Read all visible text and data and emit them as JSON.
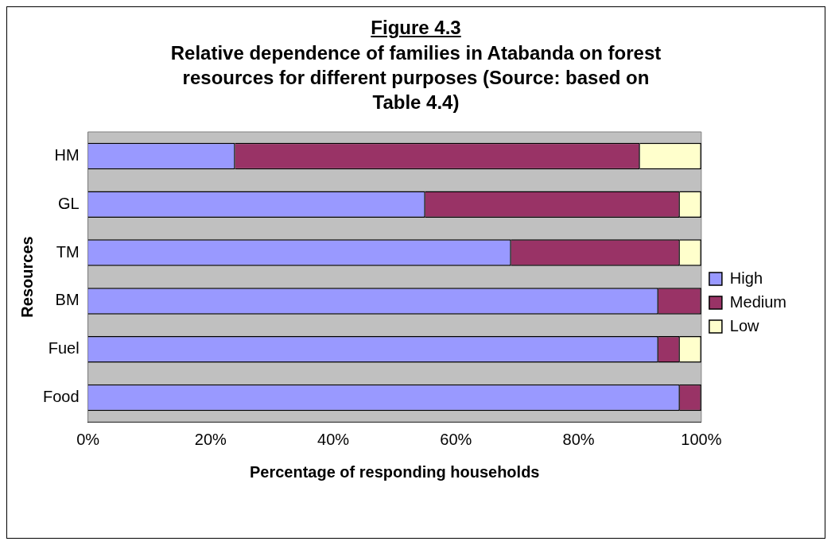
{
  "chart_data": {
    "type": "bar",
    "orientation": "horizontal",
    "stacked": true,
    "title": "Figure 4.3",
    "subtitle": "Relative dependence of families in Atabanda on forest resources for different purposes (Source: based on Table 4.4)",
    "xlabel": "Percentage of responding households",
    "ylabel": "Resources",
    "categories": [
      "HM",
      "GL",
      "TM",
      "BM",
      "Fuel",
      "Food"
    ],
    "series": [
      {
        "name": "High",
        "color": "#9999ff",
        "values": [
          24,
          55,
          69,
          93,
          93,
          96.5
        ]
      },
      {
        "name": "Medium",
        "color": "#993366",
        "values": [
          66,
          41.5,
          27.5,
          7,
          3.5,
          3.5
        ]
      },
      {
        "name": "Low",
        "color": "#ffffcc",
        "values": [
          10,
          3.5,
          3.5,
          null,
          3.5,
          null
        ]
      }
    ],
    "xlim": [
      0,
      100
    ],
    "xticks": [
      {
        "value": 0,
        "label": "0%"
      },
      {
        "value": 20,
        "label": "20%"
      },
      {
        "value": 40,
        "label": "40%"
      },
      {
        "value": 60,
        "label": "60%"
      },
      {
        "value": 80,
        "label": "80%"
      },
      {
        "value": 100,
        "label": "100%"
      }
    ],
    "grid": false,
    "legend": "right"
  }
}
